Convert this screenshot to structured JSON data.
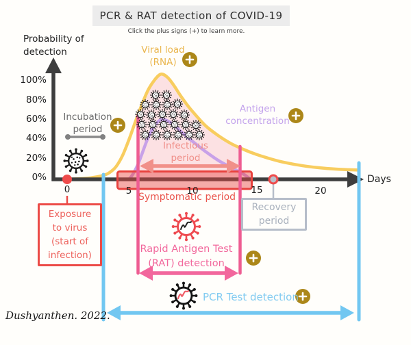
{
  "title": "PCR & RAT detection of COVID-19",
  "subtitle": "Click the plus signs (+) to learn more.",
  "signature": "Dushyanthen. 2022.",
  "axis": {
    "y_label": [
      "Probability of",
      "detection"
    ],
    "x_label": "Days",
    "y_ticks": [
      {
        "pct": 100,
        "label": "100%"
      },
      {
        "pct": 80,
        "label": "80%"
      },
      {
        "pct": 60,
        "label": "60%"
      },
      {
        "pct": 40,
        "label": "40%"
      },
      {
        "pct": 20,
        "label": "20%"
      },
      {
        "pct": 0,
        "label": "0%"
      }
    ],
    "x_ticks": [
      {
        "day": 0,
        "label": "0"
      },
      {
        "day": 5,
        "label": "5"
      },
      {
        "day": 10,
        "label": "10"
      },
      {
        "day": 15,
        "label": "15"
      },
      {
        "day": 20,
        "label": "20"
      }
    ]
  },
  "chart_data": {
    "type": "line",
    "title": "PCR & RAT detection of COVID-19",
    "xlabel": "Days",
    "ylabel": "Probability of detection",
    "x_range_days": [
      0,
      23
    ],
    "y_range_pct": [
      0,
      110
    ],
    "grid": false,
    "series": [
      {
        "name": "Viral load (RNA)",
        "color": "#f8cd5f",
        "points": [
          [
            0,
            0
          ],
          [
            1,
            0.5
          ],
          [
            2,
            1.5
          ],
          [
            3,
            4
          ],
          [
            3.5,
            7
          ],
          [
            4,
            13
          ],
          [
            4.5,
            24
          ],
          [
            5,
            40
          ],
          [
            5.5,
            58
          ],
          [
            6,
            75
          ],
          [
            6.5,
            90
          ],
          [
            7,
            100
          ],
          [
            7.5,
            106
          ],
          [
            8,
            103
          ],
          [
            8.5,
            95
          ],
          [
            9,
            85
          ],
          [
            9.5,
            76
          ],
          [
            10,
            68
          ],
          [
            11,
            54
          ],
          [
            12,
            44
          ],
          [
            13,
            36
          ],
          [
            14,
            30
          ],
          [
            15,
            25
          ],
          [
            16,
            21
          ],
          [
            17,
            17.5
          ],
          [
            18,
            15
          ],
          [
            19,
            13
          ],
          [
            20,
            11.5
          ],
          [
            21,
            10.5
          ],
          [
            22,
            9.8
          ],
          [
            23,
            9.3
          ]
        ]
      },
      {
        "name": "Antigen concentration",
        "color": "#c8a1e8",
        "points": [
          [
            5,
            0
          ],
          [
            5.3,
            5
          ],
          [
            5.7,
            15
          ],
          [
            6,
            25
          ],
          [
            6.5,
            42
          ],
          [
            7,
            54
          ],
          [
            7.5,
            60
          ],
          [
            8,
            59
          ],
          [
            8.5,
            55
          ],
          [
            9,
            49
          ],
          [
            10,
            38
          ],
          [
            11,
            28
          ],
          [
            12,
            19
          ],
          [
            13,
            12
          ],
          [
            14,
            5
          ],
          [
            14.5,
            0
          ]
        ]
      }
    ],
    "infectious_fill": {
      "color": "rgba(246,150,165,0.28)",
      "points": [
        [
          5.7,
          66
        ],
        [
          6,
          75
        ],
        [
          6.5,
          90
        ],
        [
          7,
          100
        ],
        [
          7.5,
          106
        ],
        [
          8,
          103
        ],
        [
          8.5,
          95
        ],
        [
          9,
          85
        ],
        [
          9.5,
          76
        ],
        [
          10,
          68
        ],
        [
          11,
          54
        ],
        [
          12,
          44
        ],
        [
          13,
          36
        ],
        [
          13.7,
          31
        ]
      ]
    }
  },
  "annotations": {
    "viral_load_label": [
      "Viral load",
      "(RNA)"
    ],
    "antigen_label": [
      "Antigen",
      "concentration"
    ],
    "incubation": {
      "lines": [
        "Incubation",
        "period"
      ],
      "day_start": 0,
      "day_end": 3
    },
    "infectious": {
      "lines": [
        "Infectious",
        "period"
      ],
      "day_start": 5.7,
      "day_end": 13.7
    },
    "symptomatic": {
      "label": "Symptomatic period",
      "day_start": 4.1,
      "day_end": 14.6
    },
    "exposure": {
      "lines": [
        "Exposure",
        "to virus",
        "(start of",
        "infection)"
      ],
      "day": 0
    },
    "recovery": {
      "lines": [
        "Recovery",
        "period"
      ],
      "day": 16.3
    },
    "rat": {
      "lines": [
        "Rapid Antigen Test",
        "(RAT) detection"
      ],
      "day_start": 5.7,
      "day_end": 13.7
    },
    "pcr": {
      "label": "PCR Test detection",
      "day_start": 3,
      "day_end": 23
    }
  },
  "icons": {
    "plus": "+",
    "names": [
      "virus-icon",
      "virus-cluster-icon",
      "rat-virus-icon",
      "pcr-virus-icon",
      "plus-icon"
    ]
  },
  "colors": {
    "viral_load": "#f8cd5f",
    "antigen": "#c8a1e8",
    "infectious_pink": "#ee5d92",
    "symptomatic_red": "#e8423e",
    "exposure_red": "#ec4b47",
    "recovery_gray": "#b6bdc9",
    "pcr_blue": "#72c7f1",
    "plus_gold": "#ac8719",
    "axis_dark": "#3e3e3e"
  }
}
